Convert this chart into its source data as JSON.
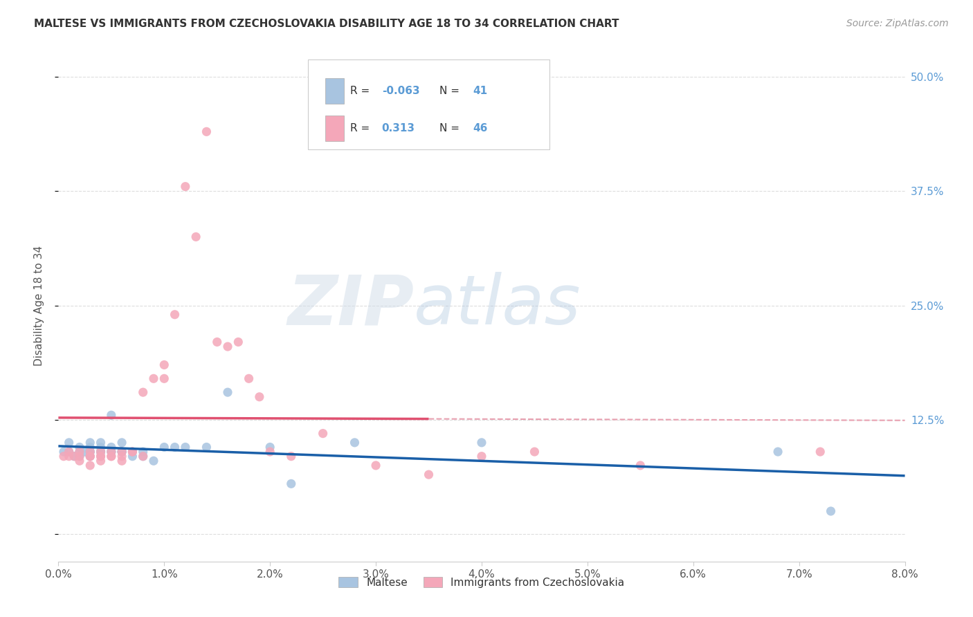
{
  "title": "MALTESE VS IMMIGRANTS FROM CZECHOSLOVAKIA DISABILITY AGE 18 TO 34 CORRELATION CHART",
  "source": "Source: ZipAtlas.com",
  "ylabel": "Disability Age 18 to 34",
  "ytick_labels": [
    "",
    "12.5%",
    "25.0%",
    "37.5%",
    "50.0%"
  ],
  "ytick_values": [
    0.0,
    0.125,
    0.25,
    0.375,
    0.5
  ],
  "xlim": [
    0.0,
    0.08
  ],
  "ylim": [
    -0.03,
    0.53
  ],
  "maltese_r": "-0.063",
  "maltese_n": "41",
  "czech_r": "0.313",
  "czech_n": "46",
  "maltese_color": "#a8c4e0",
  "czech_color": "#f4a7b9",
  "maltese_line_color": "#1a5fa8",
  "czech_line_color": "#e05070",
  "trendline_dashed_color": "#e8a0b0",
  "legend_label_1": "Maltese",
  "legend_label_2": "Immigrants from Czechoslovakia",
  "maltese_x": [
    0.0005,
    0.001,
    0.001,
    0.0015,
    0.002,
    0.002,
    0.002,
    0.0025,
    0.003,
    0.003,
    0.003,
    0.003,
    0.003,
    0.004,
    0.004,
    0.004,
    0.004,
    0.005,
    0.005,
    0.005,
    0.005,
    0.006,
    0.006,
    0.006,
    0.006,
    0.007,
    0.007,
    0.008,
    0.008,
    0.009,
    0.01,
    0.011,
    0.012,
    0.014,
    0.016,
    0.02,
    0.022,
    0.028,
    0.04,
    0.068,
    0.073
  ],
  "maltese_y": [
    0.09,
    0.09,
    0.1,
    0.085,
    0.09,
    0.085,
    0.095,
    0.09,
    0.09,
    0.085,
    0.095,
    0.1,
    0.09,
    0.09,
    0.095,
    0.09,
    0.1,
    0.09,
    0.09,
    0.095,
    0.13,
    0.09,
    0.09,
    0.1,
    0.09,
    0.09,
    0.085,
    0.09,
    0.085,
    0.08,
    0.095,
    0.095,
    0.095,
    0.095,
    0.155,
    0.095,
    0.055,
    0.1,
    0.1,
    0.09,
    0.025
  ],
  "czech_x": [
    0.0005,
    0.001,
    0.001,
    0.0015,
    0.002,
    0.002,
    0.002,
    0.003,
    0.003,
    0.003,
    0.003,
    0.004,
    0.004,
    0.004,
    0.004,
    0.005,
    0.005,
    0.005,
    0.006,
    0.006,
    0.006,
    0.007,
    0.007,
    0.008,
    0.008,
    0.009,
    0.01,
    0.01,
    0.011,
    0.012,
    0.013,
    0.014,
    0.015,
    0.016,
    0.017,
    0.018,
    0.019,
    0.02,
    0.022,
    0.025,
    0.03,
    0.035,
    0.04,
    0.045,
    0.055,
    0.072
  ],
  "czech_y": [
    0.085,
    0.085,
    0.09,
    0.085,
    0.085,
    0.09,
    0.08,
    0.085,
    0.09,
    0.075,
    0.085,
    0.085,
    0.09,
    0.085,
    0.08,
    0.085,
    0.09,
    0.085,
    0.09,
    0.085,
    0.08,
    0.09,
    0.09,
    0.085,
    0.155,
    0.17,
    0.185,
    0.17,
    0.24,
    0.38,
    0.325,
    0.44,
    0.21,
    0.205,
    0.21,
    0.17,
    0.15,
    0.09,
    0.085,
    0.11,
    0.075,
    0.065,
    0.085,
    0.09,
    0.075,
    0.09
  ],
  "watermark_zip": "ZIP",
  "watermark_atlas": "atlas",
  "background_color": "#ffffff",
  "grid_color": "#dddddd"
}
